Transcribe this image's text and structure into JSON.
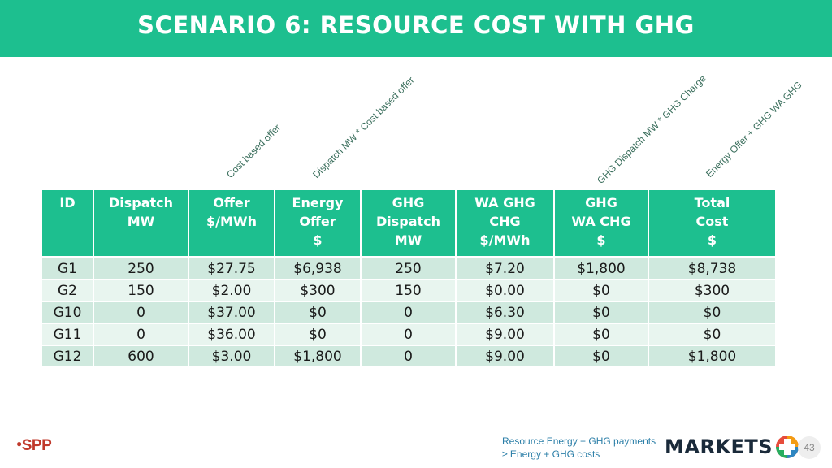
{
  "title": "SCENARIO 6:  RESOURCE COST WITH GHG",
  "annotations": [
    "Cost based offer",
    "Dispatch MW * Cost based offer",
    "GHG Dispatch MW * GHG Charge",
    "Energy Offer + GHG WA GHG"
  ],
  "table": {
    "headers": [
      [
        "ID"
      ],
      [
        "Dispatch",
        "MW"
      ],
      [
        "Offer",
        "$/MWh"
      ],
      [
        "Energy",
        "Offer",
        "$"
      ],
      [
        "GHG",
        "Dispatch",
        "MW"
      ],
      [
        "WA GHG",
        "CHG",
        "$/MWh"
      ],
      [
        "GHG",
        "WA CHG",
        "$"
      ],
      [
        "Total",
        "Cost",
        "$"
      ]
    ],
    "rows": [
      [
        "G1",
        "250",
        "$27.75",
        "$6,938",
        "250",
        "$7.20",
        "$1,800",
        "$8,738"
      ],
      [
        "G2",
        "150",
        "$2.00",
        "$300",
        "150",
        "$0.00",
        "$0",
        "$300"
      ],
      [
        "G10",
        "0",
        "$37.00",
        "$0",
        "0",
        "$6.30",
        "$0",
        "$0"
      ],
      [
        "G11",
        "0",
        "$36.00",
        "$0",
        "0",
        "$9.00",
        "$0",
        "$0"
      ],
      [
        "G12",
        "600",
        "$3.00",
        "$1,800",
        "0",
        "$9.00",
        "$0",
        "$1,800"
      ]
    ]
  },
  "footer": {
    "note_line1": "Resource Energy + GHG payments",
    "note_line2": "≥ Energy + GHG costs",
    "spp_logo": "SPP",
    "markets_logo": "MARKETS",
    "page_number": "43"
  },
  "colors": {
    "accent": "#1dbf8f",
    "row_dark": "#cfe9de",
    "row_light": "#e8f5ef"
  }
}
